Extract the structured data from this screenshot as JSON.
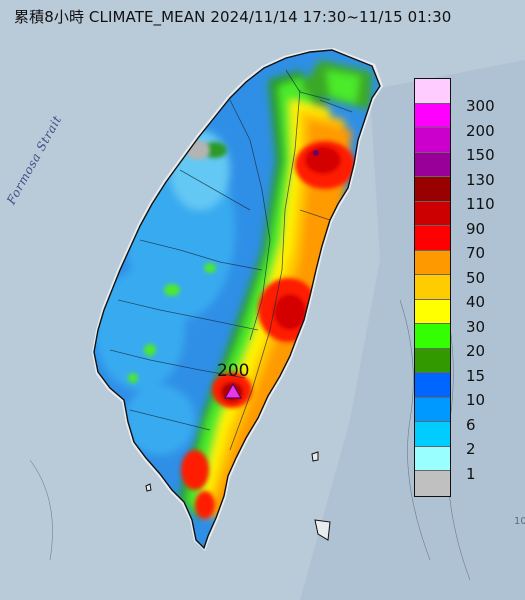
{
  "title": "累積8小時 CLIMATE_MEAN 2024/11/14 17:30~11/15 01:30",
  "strait_label": "Formosa Strait",
  "max_station": {
    "value": "200"
  },
  "edge_text": "10",
  "legend": {
    "bins": [
      {
        "label": "300",
        "color": "#ffccff"
      },
      {
        "label": "200",
        "color": "#ff00ff"
      },
      {
        "label": "150",
        "color": "#cc00cc"
      },
      {
        "label": "130",
        "color": "#990099"
      },
      {
        "label": "110",
        "color": "#990000"
      },
      {
        "label": "90",
        "color": "#cc0000"
      },
      {
        "label": "70",
        "color": "#ff0000"
      },
      {
        "label": "50",
        "color": "#ff9900"
      },
      {
        "label": "40",
        "color": "#ffcc00"
      },
      {
        "label": "30",
        "color": "#ffff00"
      },
      {
        "label": "20",
        "color": "#33ff00"
      },
      {
        "label": "15",
        "color": "#339900"
      },
      {
        "label": "10",
        "color": "#0066ff"
      },
      {
        "label": "6",
        "color": "#0099ff"
      },
      {
        "label": "2",
        "color": "#00ccff"
      },
      {
        "label": "1",
        "color": "#99ffff"
      },
      {
        "label": "",
        "color": "#c0c0c0"
      }
    ]
  }
}
